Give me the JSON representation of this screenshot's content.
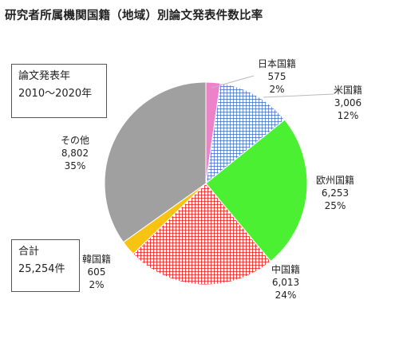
{
  "title": "研究者所属機関国籍（地域）別論文発表件数比率",
  "period_box": {
    "line1": "論文発表年",
    "line2": "2010〜2020年"
  },
  "total_box": {
    "line1": "合計",
    "line2": "25,254件"
  },
  "chart_data": {
    "type": "pie",
    "title": "研究者所属機関国籍（地域）別論文発表件数比率",
    "total": "25,254件",
    "slices": [
      {
        "label": "日本国籍",
        "value": 575,
        "value_text": "575",
        "percent_text": "2%",
        "color": "#ee82c9",
        "pattern": "solid"
      },
      {
        "label": "米国籍",
        "value": 3006,
        "value_text": "3,006",
        "percent_text": "12%",
        "color": "#4f7fcf",
        "pattern": "grid-blue"
      },
      {
        "label": "欧州国籍",
        "value": 6253,
        "value_text": "6,253",
        "percent_text": "25%",
        "color": "#4cf032",
        "pattern": "solid"
      },
      {
        "label": "中国籍",
        "value": 6013,
        "value_text": "6,013",
        "percent_text": "24%",
        "color": "#e82020",
        "pattern": "grid-red"
      },
      {
        "label": "韓国籍",
        "value": 605,
        "value_text": "605",
        "percent_text": "2%",
        "color": "#f7c414",
        "pattern": "solid"
      },
      {
        "label": "その他",
        "value": 8802,
        "value_text": "8,802",
        "percent_text": "35%",
        "color": "#a0a0a0",
        "pattern": "solid"
      }
    ]
  }
}
